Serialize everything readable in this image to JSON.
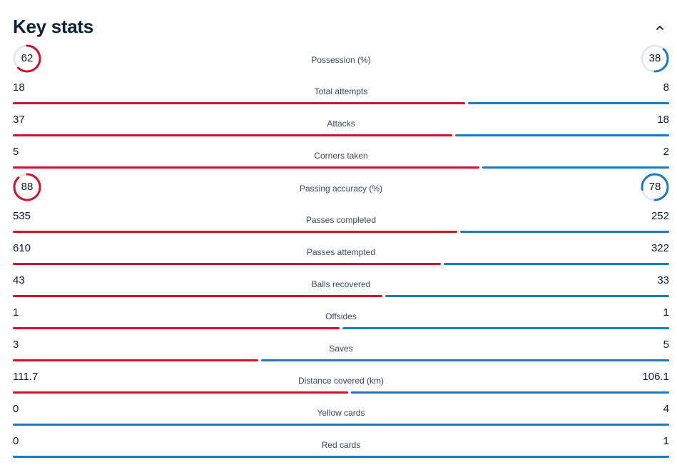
{
  "header": {
    "title": "Key stats"
  },
  "colors": {
    "home": "#d4102a",
    "away": "#1b7bbf",
    "track": "#e3e8ee"
  },
  "icons": {
    "collapse": "chevron-up-icon"
  },
  "stats": [
    {
      "label": "Possession (%)",
      "home": "62",
      "away": "38",
      "style": "ring"
    },
    {
      "label": "Total attempts",
      "home": "18",
      "away": "8",
      "style": "bar"
    },
    {
      "label": "Attacks",
      "home": "37",
      "away": "18",
      "style": "bar"
    },
    {
      "label": "Corners taken",
      "home": "5",
      "away": "2",
      "style": "bar"
    },
    {
      "label": "Passing accuracy (%)",
      "home": "88",
      "away": "78",
      "style": "ring"
    },
    {
      "label": "Passes completed",
      "home": "535",
      "away": "252",
      "style": "bar"
    },
    {
      "label": "Passes attempted",
      "home": "610",
      "away": "322",
      "style": "bar"
    },
    {
      "label": "Balls recovered",
      "home": "43",
      "away": "33",
      "style": "bar"
    },
    {
      "label": "Offsides",
      "home": "1",
      "away": "1",
      "style": "bar"
    },
    {
      "label": "Saves",
      "home": "3",
      "away": "5",
      "style": "bar"
    },
    {
      "label": "Distance covered (km)",
      "home": "111.7",
      "away": "106.1",
      "style": "bar"
    },
    {
      "label": "Yellow cards",
      "home": "0",
      "away": "4",
      "style": "bar"
    },
    {
      "label": "Red cards",
      "home": "0",
      "away": "1",
      "style": "bar"
    }
  ]
}
